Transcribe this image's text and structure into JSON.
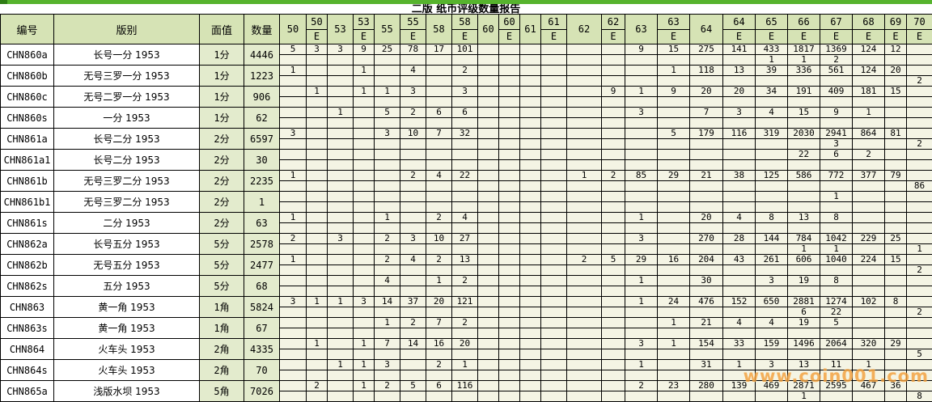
{
  "title": "二版  纸币评级数量报告",
  "watermark": "www.coin001.com",
  "colors": {
    "topbar": "#56b32d",
    "topbar_left": "#2e7d14",
    "header_bg": "#d6e3b5",
    "value_bg": "#e3ebcd",
    "cell_bg": "#f4f4e4",
    "watermark_color": "#f3a03e"
  },
  "columns": {
    "left": [
      "编号",
      "版别",
      "面值",
      "数量"
    ],
    "grades": [
      "50",
      "50E",
      "53",
      "53E",
      "55",
      "55E",
      "58",
      "58E",
      "60",
      "60E",
      "61",
      "61E",
      "62",
      "62E",
      "63",
      "63E",
      "64",
      "64E",
      "65E",
      "66E",
      "67E",
      "68E",
      "69E",
      "70E"
    ]
  },
  "rows": [
    {
      "id": "CHN860a",
      "name": "长号一分  1953",
      "denom": "1分",
      "qty": "4446",
      "top": {
        "50": "5",
        "50E": "3",
        "53": "3",
        "53E": "9",
        "55": "25",
        "55E": "78",
        "58": "17",
        "58E": "101",
        "63": "9",
        "63E": "15",
        "64": "275",
        "64E": "141",
        "65E": "433",
        "66E": "1817",
        "67E": "1369",
        "68E": "124",
        "69E": "12"
      },
      "bottom": {
        "65E": "1",
        "66E": "1",
        "67E": "2"
      }
    },
    {
      "id": "CHN860b",
      "name": "无号三罗一分  1953",
      "denom": "1分",
      "qty": "1223",
      "top": {
        "50": "1",
        "53E": "1",
        "55E": "4",
        "58E": "2",
        "63E": "1",
        "64": "118",
        "64E": "13",
        "65E": "39",
        "66E": "336",
        "67E": "561",
        "68E": "124",
        "69E": "20"
      },
      "bottom": {
        "70E": "2"
      }
    },
    {
      "id": "CHN860c",
      "name": "无号二罗一分  1953",
      "denom": "1分",
      "qty": "906",
      "top": {
        "50E": "1",
        "53E": "1",
        "55": "1",
        "55E": "3",
        "58E": "3",
        "62E": "9",
        "63": "1",
        "63E": "9",
        "64": "20",
        "64E": "20",
        "65E": "34",
        "66E": "191",
        "67E": "409",
        "68E": "181",
        "69E": "15"
      },
      "bottom": {}
    },
    {
      "id": "CHN860s",
      "name": "一分  1953",
      "denom": "1分",
      "qty": "62",
      "top": {
        "53": "1",
        "55": "5",
        "55E": "2",
        "58": "6",
        "58E": "6",
        "63": "3",
        "64": "7",
        "64E": "3",
        "65E": "4",
        "66E": "15",
        "67E": "9",
        "68E": "1"
      },
      "bottom": {}
    },
    {
      "id": "CHN861a",
      "name": "长号二分  1953",
      "denom": "2分",
      "qty": "6597",
      "top": {
        "50": "3",
        "55": "3",
        "55E": "10",
        "58": "7",
        "58E": "32",
        "63E": "5",
        "64": "179",
        "64E": "116",
        "65E": "319",
        "66E": "2030",
        "67E": "2941",
        "68E": "864",
        "69E": "81"
      },
      "bottom": {
        "67E": "3",
        "70E": "2"
      }
    },
    {
      "id": "CHN861a1",
      "name": "长号二分  1953",
      "denom": "2分",
      "qty": "30",
      "top": {
        "66E": "22",
        "67E": "6",
        "68E": "2"
      },
      "bottom": {}
    },
    {
      "id": "CHN861b",
      "name": "无号三罗二分  1953",
      "denom": "2分",
      "qty": "2235",
      "top": {
        "50": "1",
        "55E": "2",
        "58": "4",
        "58E": "22",
        "62": "1",
        "62E": "2",
        "63": "85",
        "63E": "29",
        "64": "21",
        "64E": "38",
        "65E": "125",
        "66E": "586",
        "67E": "772",
        "68E": "377",
        "69E": "79"
      },
      "bottom": {
        "70E": "86"
      }
    },
    {
      "id": "CHN861b1",
      "name": "无号三罗二分  1953",
      "denom": "2分",
      "qty": "1",
      "top": {
        "67E": "1"
      },
      "bottom": {}
    },
    {
      "id": "CHN861s",
      "name": "二分  1953",
      "denom": "2分",
      "qty": "63",
      "top": {
        "50": "1",
        "55": "1",
        "58": "2",
        "58E": "4",
        "63": "1",
        "64": "20",
        "64E": "4",
        "65E": "8",
        "66E": "13",
        "67E": "8"
      },
      "bottom": {}
    },
    {
      "id": "CHN862a",
      "name": "长号五分  1953",
      "denom": "5分",
      "qty": "2578",
      "top": {
        "50": "2",
        "53": "3",
        "55": "2",
        "55E": "3",
        "58": "10",
        "58E": "27",
        "63": "3",
        "64": "270",
        "64E": "28",
        "65E": "144",
        "66E": "784",
        "67E": "1042",
        "68E": "229",
        "69E": "25"
      },
      "bottom": {
        "66E": "1",
        "67E": "1",
        "70E": "1"
      }
    },
    {
      "id": "CHN862b",
      "name": "无号五分  1953",
      "denom": "5分",
      "qty": "2477",
      "top": {
        "50": "1",
        "55": "2",
        "55E": "4",
        "58": "2",
        "58E": "13",
        "62": "2",
        "62E": "5",
        "63": "29",
        "63E": "16",
        "64": "204",
        "64E": "43",
        "65E": "261",
        "66E": "606",
        "67E": "1040",
        "68E": "224",
        "69E": "15"
      },
      "bottom": {
        "70E": "2"
      }
    },
    {
      "id": "CHN862s",
      "name": "五分  1953",
      "denom": "5分",
      "qty": "68",
      "top": {
        "55": "4",
        "58": "1",
        "58E": "2",
        "63": "1",
        "64": "30",
        "65E": "3",
        "66E": "19",
        "67E": "8"
      },
      "bottom": {}
    },
    {
      "id": "CHN863",
      "name": "黄一角  1953",
      "denom": "1角",
      "qty": "5824",
      "top": {
        "50": "3",
        "50E": "1",
        "53": "1",
        "53E": "3",
        "55": "14",
        "55E": "37",
        "58": "20",
        "58E": "121",
        "63": "1",
        "63E": "24",
        "64": "476",
        "64E": "152",
        "65E": "650",
        "66E": "2881",
        "67E": "1274",
        "68E": "102",
        "69E": "8"
      },
      "bottom": {
        "66E": "6",
        "67E": "22",
        "70E": "2"
      }
    },
    {
      "id": "CHN863s",
      "name": "黄一角  1953",
      "denom": "1角",
      "qty": "67",
      "top": {
        "55": "1",
        "55E": "2",
        "58": "7",
        "58E": "2",
        "63E": "1",
        "64": "21",
        "64E": "4",
        "65E": "4",
        "66E": "19",
        "67E": "5"
      },
      "bottom": {}
    },
    {
      "id": "CHN864",
      "name": "火车头  1953",
      "denom": "2角",
      "qty": "4335",
      "top": {
        "50E": "1",
        "53E": "1",
        "55": "7",
        "55E": "14",
        "58": "16",
        "58E": "20",
        "63": "3",
        "63E": "1",
        "64": "154",
        "64E": "33",
        "65E": "159",
        "66E": "1496",
        "67E": "2064",
        "68E": "320",
        "69E": "29"
      },
      "bottom": {
        "70E": "5"
      }
    },
    {
      "id": "CHN864s",
      "name": "火车头  1953",
      "denom": "2角",
      "qty": "70",
      "top": {
        "53": "1",
        "53E": "1",
        "55": "3",
        "58": "2",
        "58E": "1",
        "63": "1",
        "64": "31",
        "64E": "1",
        "65E": "3",
        "66E": "13",
        "67E": "11",
        "68E": "1"
      },
      "bottom": {}
    },
    {
      "id": "CHN865a",
      "name": "浅版水坝  1953",
      "denom": "5角",
      "qty": "7026",
      "top": {
        "50E": "2",
        "53E": "1",
        "55": "2",
        "55E": "5",
        "58": "6",
        "58E": "116",
        "63": "2",
        "63E": "23",
        "64": "280",
        "64E": "139",
        "65E": "469",
        "66E": "2871",
        "67E": "2595",
        "68E": "467",
        "69E": "36"
      },
      "bottom": {
        "66E": "1",
        "70E": "8"
      }
    }
  ]
}
